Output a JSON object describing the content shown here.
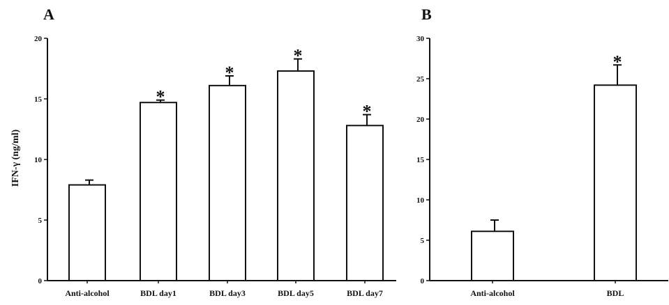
{
  "chart_data": [
    {
      "type": "bar",
      "panel_label": "A",
      "title": "",
      "xlabel": "",
      "ylabel": "IFN-γ (ng/ml)",
      "ylim": [
        0,
        20
      ],
      "yticks": [
        "0",
        "5",
        "10",
        "15",
        "20"
      ],
      "categories": [
        "Anti-alcohol",
        "BDL day1",
        "BDL day3",
        "BDL day5",
        "BDL day7"
      ],
      "values": [
        7.9,
        14.7,
        16.1,
        17.3,
        12.8
      ],
      "errors": [
        0.4,
        0.2,
        0.8,
        1.0,
        0.9
      ],
      "significance": [
        "",
        "*",
        "*",
        "*",
        "*"
      ],
      "grid": false
    },
    {
      "type": "bar",
      "panel_label": "B",
      "title": "",
      "xlabel": "",
      "ylabel": "",
      "ylim": [
        0,
        30
      ],
      "yticks": [
        "0",
        "5",
        "10",
        "15",
        "20",
        "25",
        "30"
      ],
      "categories": [
        "Anti-alcohol",
        "BDL"
      ],
      "values": [
        6.1,
        24.2
      ],
      "errors": [
        1.4,
        2.5
      ],
      "significance": [
        "",
        "*"
      ],
      "grid": false
    }
  ]
}
